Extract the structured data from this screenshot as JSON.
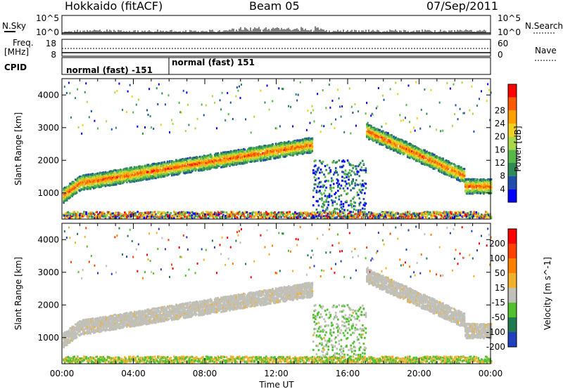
{
  "header": {
    "station": "Hokkaido (fitACF)",
    "beam": "Beam 05",
    "date": "07/Sep/2011"
  },
  "noise_panel": {
    "left_label": "N.Sky",
    "right_label": "N.Search",
    "left_ticks": [
      "10^5",
      "10^0"
    ],
    "right_ticks": [
      "10^5",
      "10^0"
    ]
  },
  "freq_panel": {
    "left_label": "Freq.",
    "left_unit": "[MHz]",
    "left_ticks": [
      "18",
      "8"
    ],
    "right_label": "Nave",
    "right_ticks": [
      "60",
      "0"
    ]
  },
  "cpid_panel": {
    "label": "CPID",
    "segments": [
      {
        "name": "normal (fast) -151",
        "start_hour": 0,
        "end_hour": 6
      },
      {
        "name": "normal (fast) 151",
        "start_hour": 6,
        "end_hour": 24
      }
    ]
  },
  "chart_data": [
    {
      "type": "heatmap",
      "title": "",
      "xlabel": "Time UT",
      "ylabel": "Slant Range [km]",
      "xlim": [
        0,
        24
      ],
      "ylim": [
        200,
        4500
      ],
      "xticks": [
        "00:00",
        "04:00",
        "08:00",
        "12:00",
        "16:00",
        "20:00",
        "00:00"
      ],
      "yticks": [
        1000,
        2000,
        3000,
        4000
      ],
      "colorbar": {
        "label": "Power [dB]",
        "ticks": [
          4,
          8,
          12,
          16,
          20,
          24,
          28
        ],
        "colors": [
          "#0000ff",
          "#1f4faa",
          "#2e8b57",
          "#57b847",
          "#a8d848",
          "#f0d020",
          "#ffa000",
          "#ff5a00",
          "#ff0000"
        ]
      }
    },
    {
      "type": "heatmap",
      "title": "",
      "xlabel": "Time UT",
      "ylabel": "Slant Range [km]",
      "xlim": [
        0,
        24
      ],
      "ylim": [
        200,
        4500
      ],
      "xticks": [
        "00:00",
        "04:00",
        "08:00",
        "12:00",
        "16:00",
        "20:00",
        "00:00"
      ],
      "yticks": [
        1000,
        2000,
        3000,
        4000
      ],
      "colorbar": {
        "label": "Velocity [m s^-1]",
        "ticks": [
          200,
          100,
          50,
          15,
          -15,
          -50,
          -100,
          -200
        ],
        "colors": [
          "#2040c0",
          "#1f7a50",
          "#50c030",
          "#c0c0b8",
          "#f0b030",
          "#ff8000",
          "#ff4000",
          "#ff0000"
        ]
      }
    }
  ]
}
